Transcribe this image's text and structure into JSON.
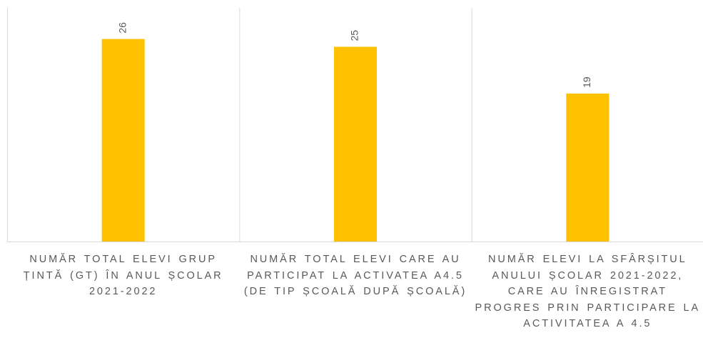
{
  "chart_data": {
    "type": "bar",
    "categories": [
      "NUMĂR TOTAL  ELEVI GRUP ȚINTĂ (GT)  ÎN ANUL ȘCOLAR 2021-2022",
      "NUMĂR TOTAL ELEVI CARE AU PARTICIPAT LA ACTIVATEA A4.5 (DE TIP ȘCOALĂ DUPĂ ȘCOALĂ)",
      "NUMĂR ELEVI  LA SFÂRȘITUL ANULUI ȘCOLAR 2021-2022, CARE AU ÎNREGISTRAT PROGRES PRIN PARTICIPARE LA ACTIVITATEA A 4.5"
    ],
    "values": [
      26,
      25,
      19
    ],
    "color": "#ffc000",
    "ylim": [
      0,
      30
    ],
    "grid": false
  }
}
